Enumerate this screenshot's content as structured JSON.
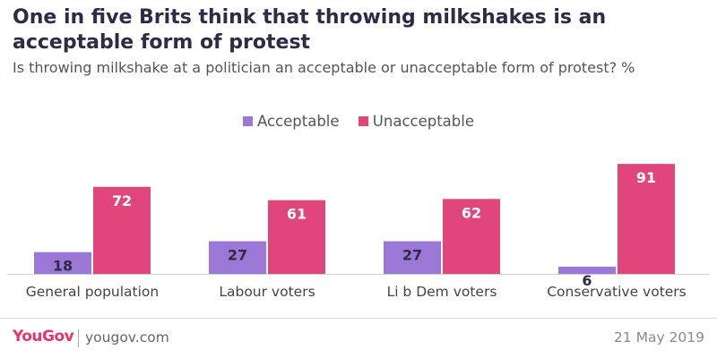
{
  "header": {
    "title": "One in five Brits think that throwing milkshakes is an acceptable form of protest",
    "subtitle": "Is throwing milkshake at a politician an acceptable or unacceptable form of protest? %"
  },
  "chart_data": {
    "type": "bar",
    "categories": [
      "General population",
      "Labour voters",
      "Li b Dem voters",
      "Conservative voters"
    ],
    "series": [
      {
        "name": "Acceptable",
        "values": [
          18,
          27,
          27,
          6
        ],
        "color": "#9b78d6"
      },
      {
        "name": "Unacceptable",
        "values": [
          72,
          61,
          62,
          91
        ],
        "color": "#e0457b"
      }
    ],
    "ylim": [
      0,
      100
    ],
    "grid": false,
    "legend_position": "top-center",
    "data_labels": true
  },
  "footer": {
    "brand": "YouGov",
    "website": "yougov.com",
    "date": "21 May 2019"
  },
  "colors": {
    "title": "#2f2a47",
    "brand": "#e8336d",
    "label_on_acceptable": "#2f2a47",
    "label_on_unacceptable": "#ffffff"
  }
}
